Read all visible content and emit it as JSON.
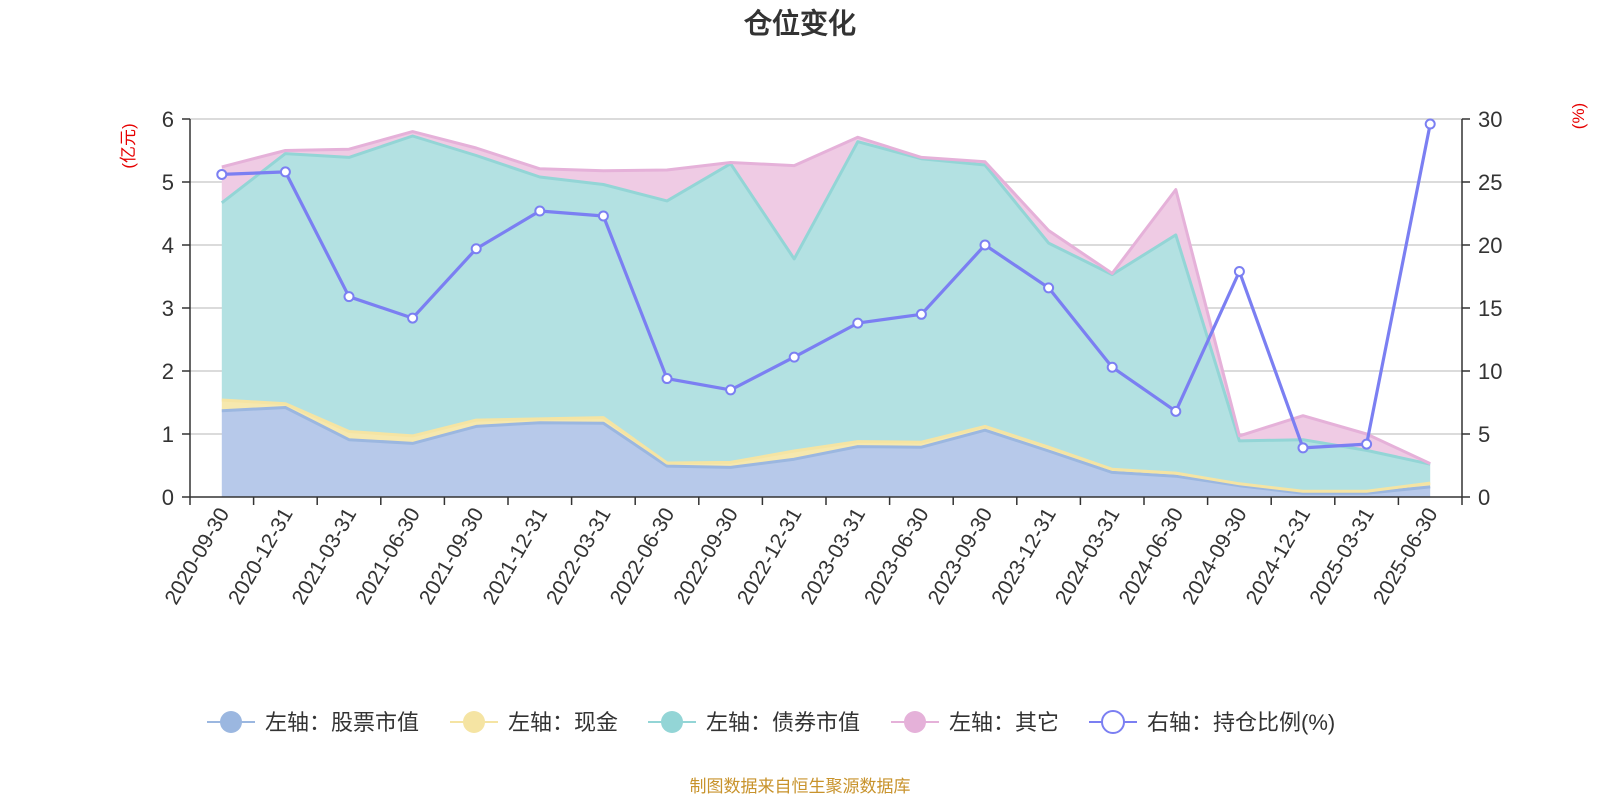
{
  "chart_data": {
    "type": "area",
    "title": "仓位变化",
    "left_axis_unit": "(亿元)",
    "right_axis_unit": "(%)",
    "left_ylim": [
      0,
      6
    ],
    "left_ticks": [
      "0",
      "1",
      "2",
      "3",
      "4",
      "5",
      "6"
    ],
    "right_ylim": [
      0,
      30
    ],
    "right_ticks": [
      "0",
      "5",
      "10",
      "15",
      "20",
      "25",
      "30"
    ],
    "grid": true,
    "legend_position": "bottom",
    "categories": [
      "2020-09-30",
      "2020-12-31",
      "2021-03-31",
      "2021-06-30",
      "2021-09-30",
      "2021-12-31",
      "2022-03-31",
      "2022-06-30",
      "2022-09-30",
      "2022-12-31",
      "2023-03-31",
      "2023-06-30",
      "2023-09-30",
      "2023-12-31",
      "2024-03-31",
      "2024-06-30",
      "2024-09-30",
      "2024-12-31",
      "2025-03-31",
      "2025-06-30"
    ],
    "series": [
      {
        "name": "左轴：股票市值",
        "axis": "left",
        "kind": "stacked-area",
        "color": "#9bb7e0",
        "fill": "#b7c9ea",
        "values": [
          1.37,
          1.42,
          0.91,
          0.85,
          1.12,
          1.18,
          1.17,
          0.49,
          0.47,
          0.6,
          0.8,
          0.79,
          1.06,
          0.73,
          0.39,
          0.33,
          0.18,
          0.06,
          0.06,
          0.16
        ]
      },
      {
        "name": "左轴：现金",
        "axis": "left",
        "kind": "stacked-area",
        "color": "#f5e4a3",
        "fill": "#f6e8ae",
        "values": [
          0.17,
          0.06,
          0.13,
          0.12,
          0.1,
          0.06,
          0.09,
          0.05,
          0.08,
          0.13,
          0.08,
          0.08,
          0.06,
          0.06,
          0.05,
          0.05,
          0.03,
          0.03,
          0.03,
          0.06
        ]
      },
      {
        "name": "左轴：债券市值",
        "axis": "left",
        "kind": "stacked-area",
        "color": "#93d5d6",
        "fill": "#b3e1e2",
        "values": [
          3.13,
          3.97,
          4.35,
          4.76,
          4.2,
          3.84,
          3.7,
          4.16,
          4.74,
          3.05,
          4.76,
          4.5,
          4.15,
          3.24,
          3.09,
          3.78,
          0.68,
          0.82,
          0.65,
          0.3
        ]
      },
      {
        "name": "左轴：其它",
        "axis": "left",
        "kind": "stacked-area",
        "color": "#e5b1d9",
        "fill": "#efcbe4",
        "values": [
          0.57,
          0.05,
          0.13,
          0.07,
          0.12,
          0.13,
          0.22,
          0.49,
          0.02,
          1.48,
          0.07,
          0.02,
          0.05,
          0.2,
          0.02,
          0.72,
          0.08,
          0.38,
          0.26,
          0.01
        ]
      },
      {
        "name": "右轴：持仓比例(%)",
        "axis": "right",
        "kind": "line",
        "color": "#7b7ff2",
        "values": [
          25.6,
          25.8,
          15.9,
          14.2,
          19.7,
          22.7,
          22.3,
          9.4,
          8.5,
          11.1,
          13.8,
          14.5,
          20.0,
          16.6,
          10.3,
          6.8,
          17.9,
          3.9,
          4.2,
          29.6
        ]
      }
    ],
    "credit": "制图数据来自恒生聚源数据库"
  }
}
